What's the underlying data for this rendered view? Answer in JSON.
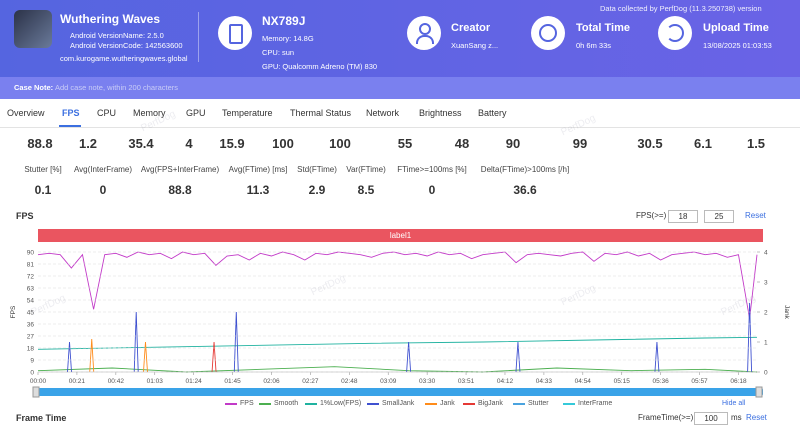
{
  "header": {
    "app": {
      "name": "Wuthering Waves",
      "version_name": "Android VersionName: 2.5.0",
      "version_code": "Android VersionCode: 142563600",
      "package": "com.kurogame.wutheringwaves.global"
    },
    "device": {
      "name": "NX789J",
      "memory": "Memory: 14.8G",
      "cpu": "CPU: sun",
      "gpu": "GPU: Qualcomm Adreno (TM) 830"
    },
    "creator": {
      "label": "Creator",
      "value": "XuanSang z..."
    },
    "total_time": {
      "label": "Total Time",
      "value": "0h 6m 33s"
    },
    "upload_time": {
      "label": "Upload Time",
      "value": "13/08/2025 01:03:53"
    },
    "collected": "Data collected by PerfDog (11.3.250738) version"
  },
  "case_note": {
    "label": "Case Note:",
    "placeholder": "Add case note, within 200 characters"
  },
  "tabs": [
    "Overview",
    "FPS",
    "CPU",
    "Memory",
    "GPU",
    "Temperature",
    "Thermal Status",
    "Network",
    "Brightness",
    "Battery"
  ],
  "active_tab": 1,
  "watermark": "PerfDog",
  "metrics_top": [
    88.8,
    1.2,
    35.4,
    4,
    15.9,
    100,
    100,
    55,
    48,
    90,
    99,
    30.5,
    6.1,
    1.5
  ],
  "metrics": [
    {
      "label": "Stutter [%]",
      "value": 0.1
    },
    {
      "label": "Avg(InterFrame)",
      "value": 0
    },
    {
      "label": "Avg(FPS+InterFrame)",
      "value": 88.8
    },
    {
      "label": "Avg(FTime) [ms]",
      "value": 11.3
    },
    {
      "label": "Std(FTime)",
      "value": 2.9
    },
    {
      "label": "Var(FTime)",
      "value": 8.5
    },
    {
      "label": "FTime>=100ms [%]",
      "value": 0
    },
    {
      "label": "Delta(FTime)>100ms [/h]",
      "value": 36.6
    }
  ],
  "fps_panel": {
    "title": "FPS",
    "threshold_label": "FPS(>=)",
    "thresholds": [
      18,
      25
    ],
    "reset": "Reset",
    "band_label": "label1",
    "hide_all": "Hide all"
  },
  "chart_data": {
    "type": "line",
    "xlim": [
      0,
      388
    ],
    "xticks": [
      {
        "value": 0,
        "label": "00:00"
      },
      {
        "value": 21,
        "label": "00:21"
      },
      {
        "value": 42,
        "label": "00:42"
      },
      {
        "value": 63,
        "label": "01:03"
      },
      {
        "value": 84,
        "label": "01:24"
      },
      {
        "value": 105,
        "label": "01:45"
      },
      {
        "value": 126,
        "label": "02:06"
      },
      {
        "value": 147,
        "label": "02:27"
      },
      {
        "value": 168,
        "label": "02:48"
      },
      {
        "value": 189,
        "label": "03:09"
      },
      {
        "value": 210,
        "label": "03:30"
      },
      {
        "value": 231,
        "label": "03:51"
      },
      {
        "value": 252,
        "label": "04:12"
      },
      {
        "value": 273,
        "label": "04:33"
      },
      {
        "value": 294,
        "label": "04:54"
      },
      {
        "value": 315,
        "label": "05:15"
      },
      {
        "value": 336,
        "label": "05:36"
      },
      {
        "value": 357,
        "label": "05:57"
      },
      {
        "value": 378,
        "label": "06:18"
      }
    ],
    "ylim": [
      0,
      90
    ],
    "yticks": [
      0,
      9,
      18,
      27,
      36,
      45,
      54,
      63,
      72,
      81,
      90
    ],
    "y2lim": [
      0,
      4
    ],
    "y2ticks": [
      0,
      1,
      2,
      3,
      4
    ],
    "ylabel": "FPS",
    "y2label": "Jank",
    "grid": true,
    "series": [
      {
        "name": "FPS",
        "color": "#c23ac8",
        "draw": "line",
        "x": [
          0,
          6,
          12,
          18,
          24,
          30,
          36,
          42,
          48,
          54,
          60,
          66,
          72,
          78,
          84,
          90,
          96,
          102,
          108,
          114,
          120,
          126,
          132,
          138,
          144,
          150,
          156,
          162,
          168,
          174,
          180,
          186,
          192,
          198,
          204,
          210,
          216,
          222,
          228,
          234,
          240,
          246,
          252,
          258,
          264,
          270,
          276,
          282,
          288,
          294,
          300,
          306,
          312,
          318,
          324,
          330,
          336,
          342,
          348,
          354,
          360,
          366,
          372,
          378,
          384,
          388
        ],
        "values": [
          88,
          89,
          88,
          78,
          88,
          47,
          88,
          89,
          86,
          90,
          88,
          89,
          85,
          90,
          88,
          89,
          80,
          87,
          88,
          84,
          89,
          87,
          90,
          88,
          84,
          89,
          88,
          90,
          89,
          88,
          86,
          89,
          90,
          88,
          89,
          87,
          90,
          88,
          89,
          85,
          88,
          89,
          90,
          82,
          88,
          89,
          88,
          87,
          89,
          90,
          83,
          89,
          88,
          90,
          87,
          89,
          84,
          88,
          89,
          90,
          88,
          89,
          86,
          88,
          40,
          88
        ]
      },
      {
        "name": "Smooth",
        "color": "#4caf50",
        "draw": "line",
        "x": [
          0,
          40,
          80,
          120,
          160,
          200,
          240,
          280,
          320,
          360,
          388
        ],
        "values": [
          1,
          3,
          0,
          2,
          4,
          1,
          0,
          3,
          1,
          2,
          0
        ]
      },
      {
        "name": "1%Low(FPS)",
        "color": "#20b2a0",
        "draw": "line",
        "x": [
          0,
          60,
          120,
          180,
          240,
          300,
          360,
          388
        ],
        "values": [
          17,
          18.5,
          20,
          21.5,
          22.5,
          24,
          25.5,
          26
        ]
      },
      {
        "name": "SmallJank",
        "color": "#3f51d0",
        "draw": "spike",
        "axis": "y2",
        "x": [
          17,
          53,
          107,
          200,
          259,
          334,
          384
        ],
        "values": [
          1,
          2,
          2,
          1,
          1,
          1,
          2.3
        ]
      },
      {
        "name": "Jank",
        "color": "#ff8c1a",
        "draw": "spike",
        "axis": "y2",
        "x": [
          29,
          58
        ],
        "values": [
          1.1,
          1
        ]
      },
      {
        "name": "BigJank",
        "color": "#e53935",
        "draw": "spike",
        "axis": "y2",
        "x": [
          95
        ],
        "values": [
          1
        ]
      },
      {
        "name": "Stutter",
        "color": "#4aa3df",
        "draw": "spike",
        "axis": "y2",
        "x": [],
        "values": []
      },
      {
        "name": "InterFrame",
        "color": "#35c9d9",
        "draw": "line",
        "x": [],
        "values": []
      }
    ]
  },
  "frame_time_panel": {
    "title": "Frame Time",
    "threshold_label": "FrameTime(>=)",
    "threshold": 100,
    "unit": "ms",
    "reset": "Reset"
  }
}
